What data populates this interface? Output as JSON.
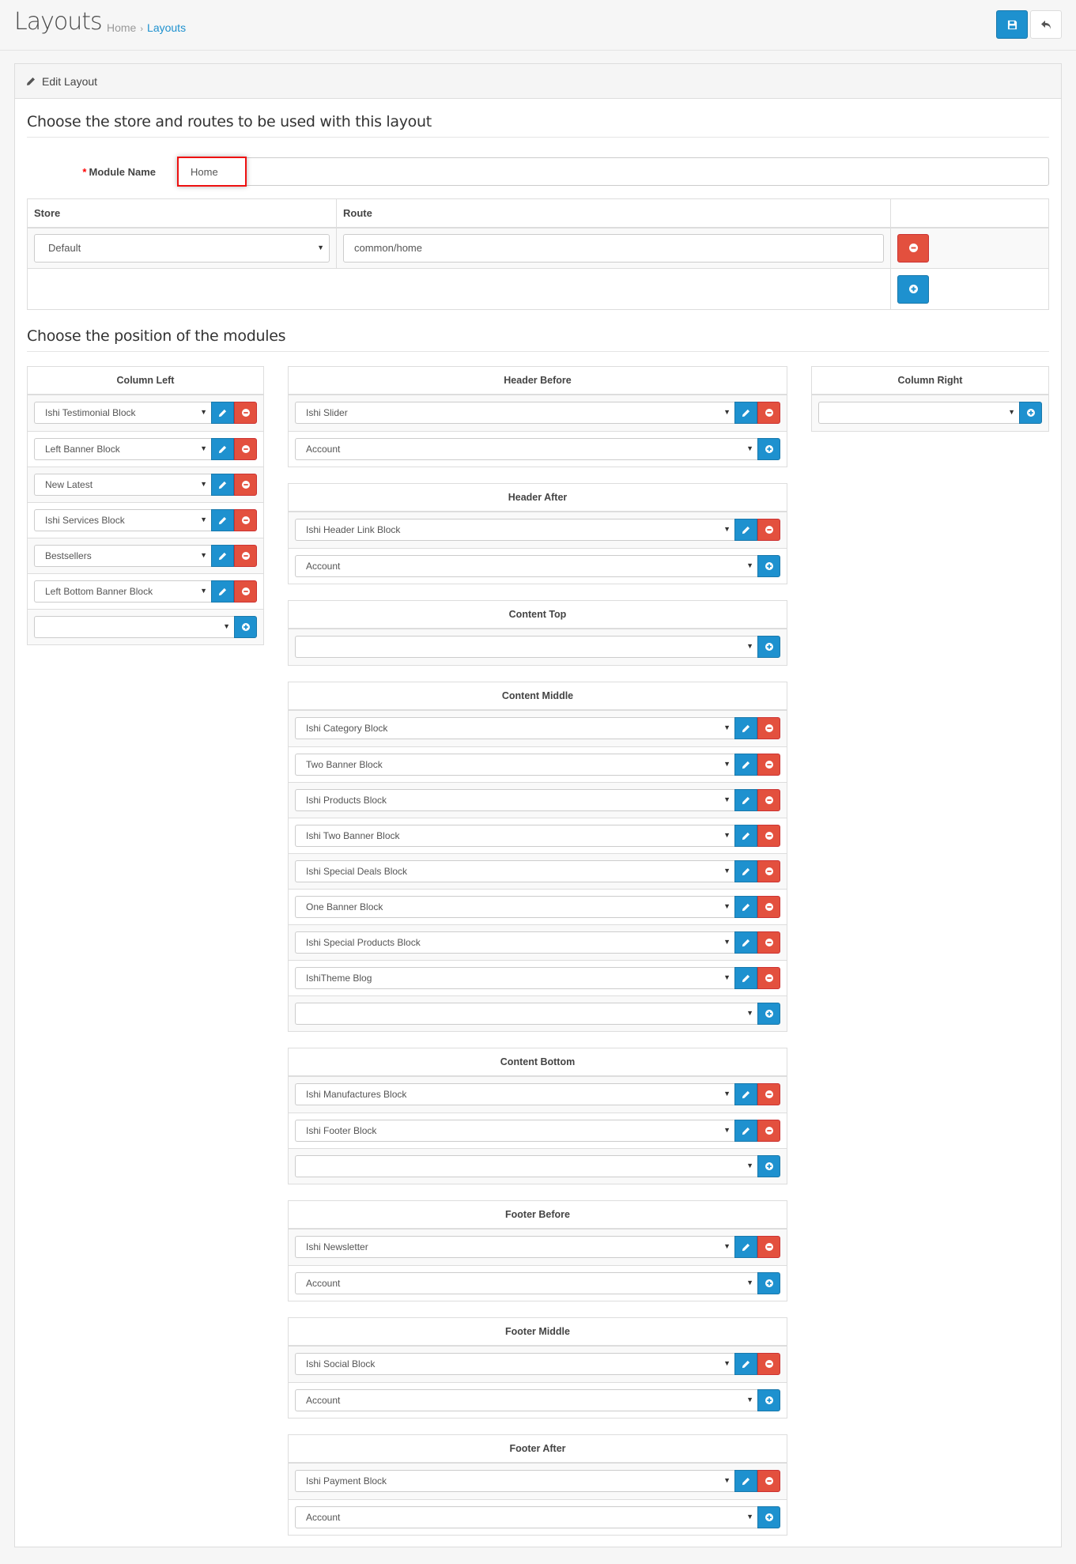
{
  "header": {
    "title": "Layouts",
    "breadcrumb": [
      {
        "label": "Home"
      },
      {
        "label": "Layouts"
      }
    ],
    "breadcrumb_separator": "›"
  },
  "panel": {
    "heading": "Edit Layout",
    "section_routes_title": "Choose the store and routes to be used with this layout",
    "module_name_label": "Module Name",
    "required_mark": "*",
    "module_name_value": "Home",
    "routes_table": {
      "headers": [
        "Store",
        "Route",
        ""
      ],
      "rows": [
        {
          "store": "Default",
          "route": "common/home"
        }
      ]
    },
    "section_positions_title": "Choose the position of the modules"
  },
  "positions": {
    "left": [
      {
        "title": "Column Left",
        "modules": [
          "Ishi Testimonial Block",
          "Left Banner Block",
          "New Latest",
          "Ishi Services Block",
          "Bestsellers",
          "Left Bottom Banner Block"
        ],
        "add_value": ""
      }
    ],
    "center": [
      {
        "title": "Header Before",
        "modules": [
          "Ishi Slider"
        ],
        "add_value": "Account"
      },
      {
        "title": "Header After",
        "modules": [
          "Ishi Header Link Block"
        ],
        "add_value": "Account"
      },
      {
        "title": "Content Top",
        "modules": [],
        "add_value": ""
      },
      {
        "title": "Content Middle",
        "modules": [
          "Ishi Category Block",
          "Two Banner Block",
          "Ishi Products Block",
          "Ishi Two Banner Block",
          "Ishi Special Deals Block",
          "One Banner Block",
          "Ishi Special Products Block",
          "IshiTheme Blog"
        ],
        "add_value": ""
      },
      {
        "title": "Content Bottom",
        "modules": [
          "Ishi Manufactures Block",
          "Ishi Footer Block"
        ],
        "add_value": ""
      },
      {
        "title": "Footer Before",
        "modules": [
          "Ishi Newsletter"
        ],
        "add_value": "Account"
      },
      {
        "title": "Footer Middle",
        "modules": [
          "Ishi Social Block"
        ],
        "add_value": "Account"
      },
      {
        "title": "Footer After",
        "modules": [
          "Ishi Payment Block"
        ],
        "add_value": "Account"
      }
    ],
    "right": [
      {
        "title": "Column Right",
        "modules": [],
        "add_value": ""
      }
    ]
  },
  "icons": {
    "save": "save-icon",
    "back": "reply-icon",
    "edit": "pencil-icon",
    "remove": "minus-circle-icon",
    "add": "plus-circle-icon",
    "dropdown": "caret-down-icon"
  },
  "colors": {
    "primary": "#1e91cf",
    "danger": "#e3503e",
    "link": "#1e91cf",
    "required": "#ff0000",
    "highlight": "#ee1111"
  }
}
